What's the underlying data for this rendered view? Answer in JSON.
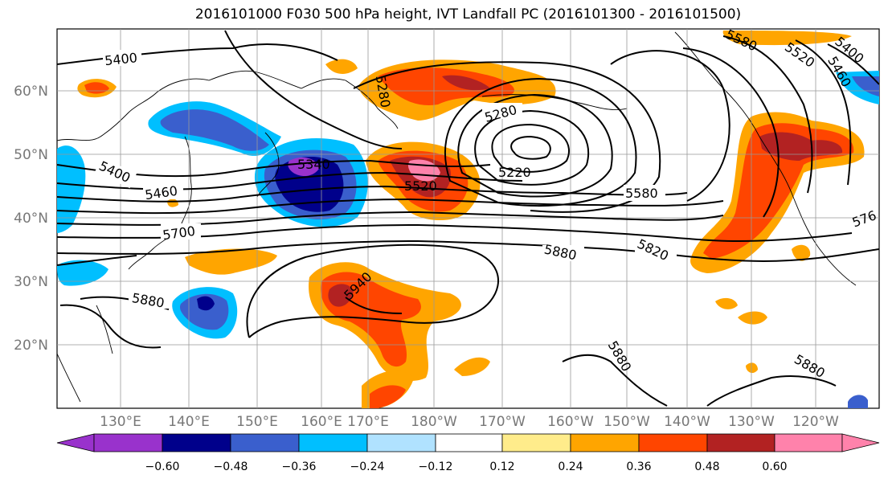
{
  "title": "2016101000 F030 500 hPa height, IVT Landfall PC (2016101300 - 2016101500)",
  "lat_labels": [
    "60°N",
    "50°N",
    "40°N",
    "30°N",
    "20°N"
  ],
  "lon_labels": [
    "130°E",
    "140°E",
    "150°E",
    "160°E",
    "170°E",
    "180°W",
    "170°W",
    "160°W",
    "150°W",
    "140°W",
    "130°W",
    "120°W"
  ],
  "contour_labels": [
    "5400",
    "5400",
    "5460",
    "5340",
    "5520",
    "5700",
    "5940",
    "5880",
    "5280",
    "5220",
    "5280",
    "5580",
    "5880",
    "5820",
    "5880",
    "5880",
    "5580",
    "5520",
    "5460",
    "5400",
    "576",
    "5880",
    "5880"
  ],
  "colorbar": {
    "tick_labels": [
      "−0.60",
      "−0.48",
      "−0.36",
      "−0.24",
      "−0.12",
      "0.12",
      "0.24",
      "0.36",
      "0.48",
      "0.60"
    ],
    "colors": [
      "#9932cc",
      "#00008b",
      "#3a5fcd",
      "#00bfff",
      "#b0e2ff",
      "#ffffff",
      "#ffec8b",
      "#ffa500",
      "#ff4500",
      "#b22222",
      "#ff82ab"
    ]
  }
}
